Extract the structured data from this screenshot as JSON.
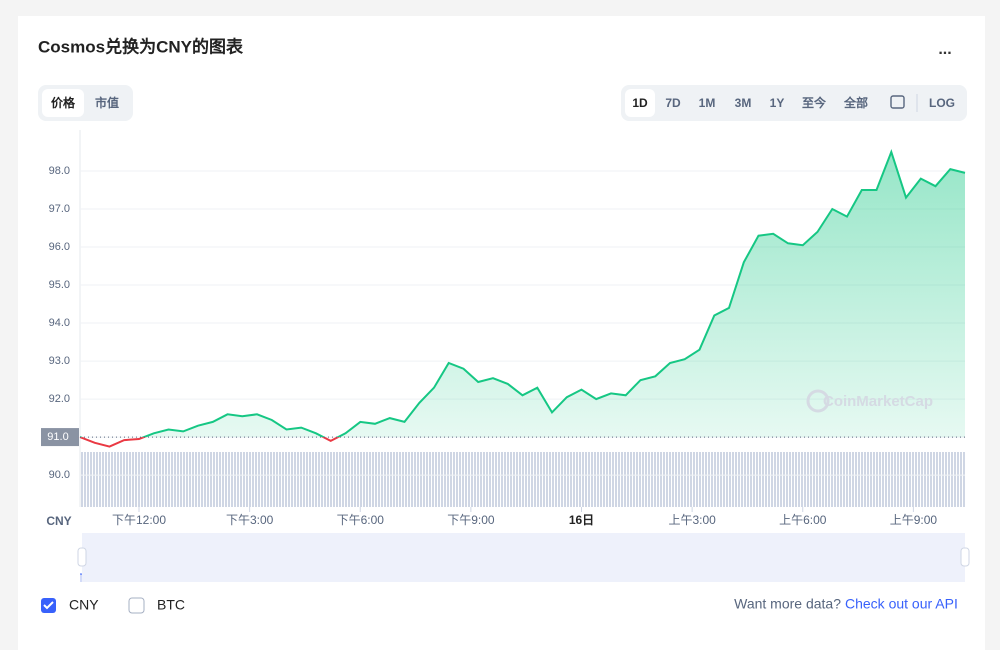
{
  "header": {
    "title": "Cosmos兑换为CNY的图表",
    "menu": "..."
  },
  "tabs": [
    "价格",
    "市值"
  ],
  "ranges": [
    "1D",
    "7D",
    "1M",
    "3M",
    "1Y",
    "至今",
    "全部"
  ],
  "log_button": "LOG",
  "chart_data": {
    "type": "line",
    "y_label": "CNY",
    "watermark": "CoinMarketCap",
    "x": [
      10.4,
      10.8,
      11.2,
      11.6,
      12.0,
      12.4,
      12.8,
      13.2,
      13.6,
      14.0,
      14.4,
      14.8,
      15.2,
      15.6,
      16.0,
      16.4,
      16.8,
      17.2,
      17.6,
      18.0,
      18.4,
      18.8,
      19.2,
      19.6,
      20.0,
      20.4,
      20.8,
      21.2,
      21.6,
      22.0,
      22.4,
      22.8,
      23.2,
      23.6,
      24.0,
      24.4,
      24.8,
      25.2,
      25.6,
      26.0,
      26.4,
      26.8,
      27.2,
      27.6,
      28.0,
      28.4,
      28.8,
      29.2,
      29.6,
      30.0,
      30.4,
      30.8,
      31.2,
      31.6,
      32.0,
      32.4,
      32.8,
      33.2,
      33.6,
      34.0,
      34.4
    ],
    "series": [
      {
        "name": "CNY",
        "color": "#16c784",
        "below_color": "#ea3943",
        "values": [
          91.0,
          90.85,
          90.75,
          90.92,
          90.95,
          91.1,
          91.2,
          91.15,
          91.3,
          91.4,
          91.6,
          91.55,
          91.6,
          91.45,
          91.2,
          91.25,
          91.1,
          90.9,
          91.1,
          91.4,
          91.35,
          91.5,
          91.4,
          91.9,
          92.3,
          92.95,
          92.8,
          92.45,
          92.55,
          92.4,
          92.1,
          92.3,
          91.65,
          92.05,
          92.25,
          92.0,
          92.15,
          92.1,
          92.5,
          92.6,
          92.95,
          93.05,
          93.3,
          94.2,
          94.4,
          95.6,
          96.3,
          96.35,
          96.1,
          96.05,
          96.4,
          97.0,
          96.8,
          97.5,
          97.5,
          98.5,
          97.3,
          97.8,
          97.6,
          98.05,
          97.95
        ]
      }
    ],
    "reference": {
      "value": 91.0,
      "label": "91.0"
    },
    "xlim": [
      10.4,
      34.4
    ],
    "xticks": [
      {
        "value": 12,
        "label": "下午12:00"
      },
      {
        "value": 15,
        "label": "下午3:00"
      },
      {
        "value": 18,
        "label": "下午6:00"
      },
      {
        "value": 21,
        "label": "下午9:00"
      },
      {
        "value": 24,
        "label": "16日"
      },
      {
        "value": 27,
        "label": "上午3:00"
      },
      {
        "value": 30,
        "label": "上午6:00"
      },
      {
        "value": 33,
        "label": "上午9:00"
      }
    ],
    "ylim": [
      89.16,
      99.08
    ],
    "yticks": [
      {
        "value": 90,
        "label": "90.0"
      },
      {
        "value": 91,
        "label": "91.0"
      },
      {
        "value": 92,
        "label": "92.0"
      },
      {
        "value": 93,
        "label": "93.0"
      },
      {
        "value": 94,
        "label": "94.0"
      },
      {
        "value": 95,
        "label": "95.0"
      },
      {
        "value": 96,
        "label": "96.0"
      },
      {
        "value": 97,
        "label": "97.0"
      },
      {
        "value": 98,
        "label": "98.0"
      }
    ],
    "grid": true
  },
  "toggles": [
    "BTC"
  ],
  "footer": {
    "text": "Want more data?",
    "link": "Check out our API"
  }
}
